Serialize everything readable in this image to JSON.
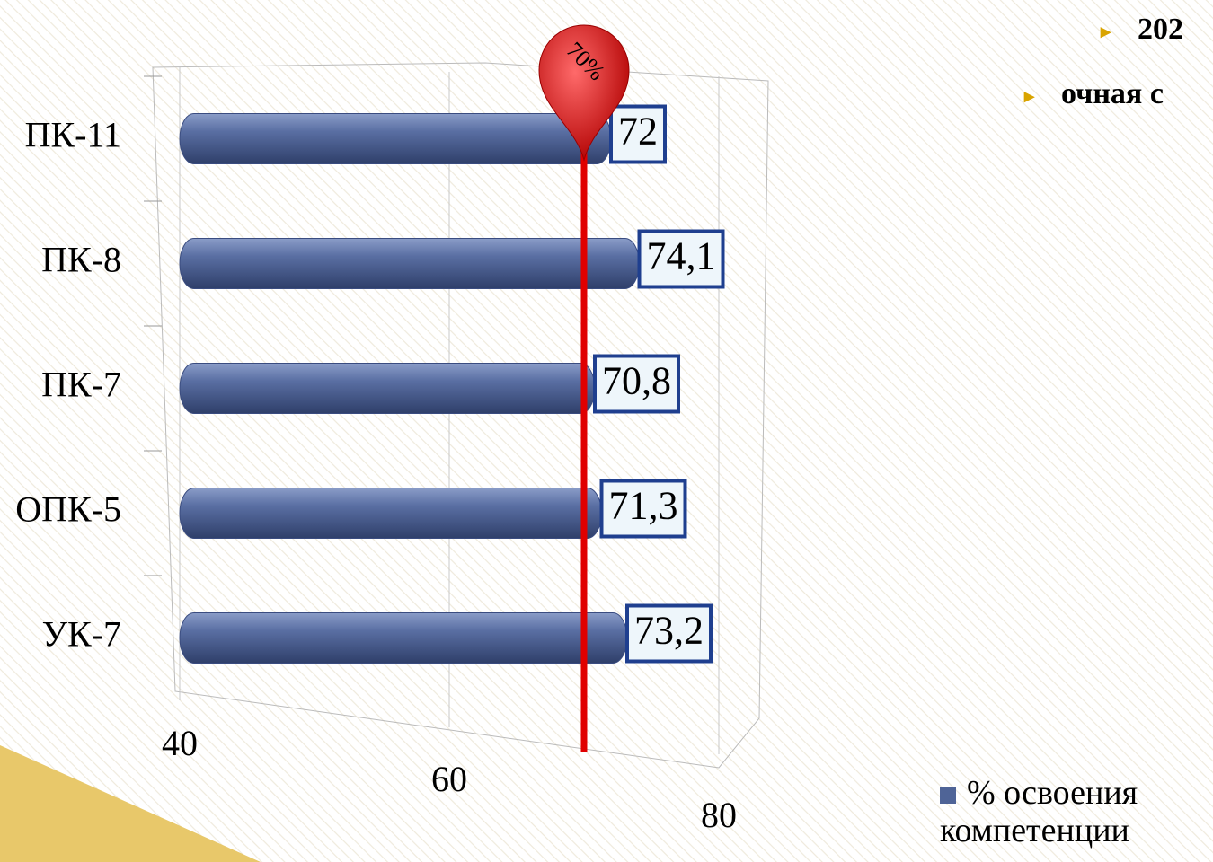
{
  "header": {
    "title": "202",
    "subtitle": "очная с"
  },
  "chart_data": {
    "type": "bar",
    "orientation": "horizontal",
    "categories": [
      "ПК-11",
      "ПК-8",
      "ПК-7",
      "ОПК-5",
      "УК-7"
    ],
    "series": [
      {
        "name": "% освоения компетенции",
        "color": "#4f6497",
        "values": [
          72,
          74.1,
          70.8,
          71.3,
          73.2
        ],
        "value_labels": [
          "72",
          "74,1",
          "70,8",
          "71,3",
          "73,2"
        ]
      }
    ],
    "xlim": [
      40,
      80
    ],
    "xticks": [
      40,
      60,
      80
    ],
    "grid": true,
    "threshold": {
      "value": 70,
      "label": "70%"
    },
    "threshold_color": "#e00000",
    "legend": "bottom-right"
  }
}
